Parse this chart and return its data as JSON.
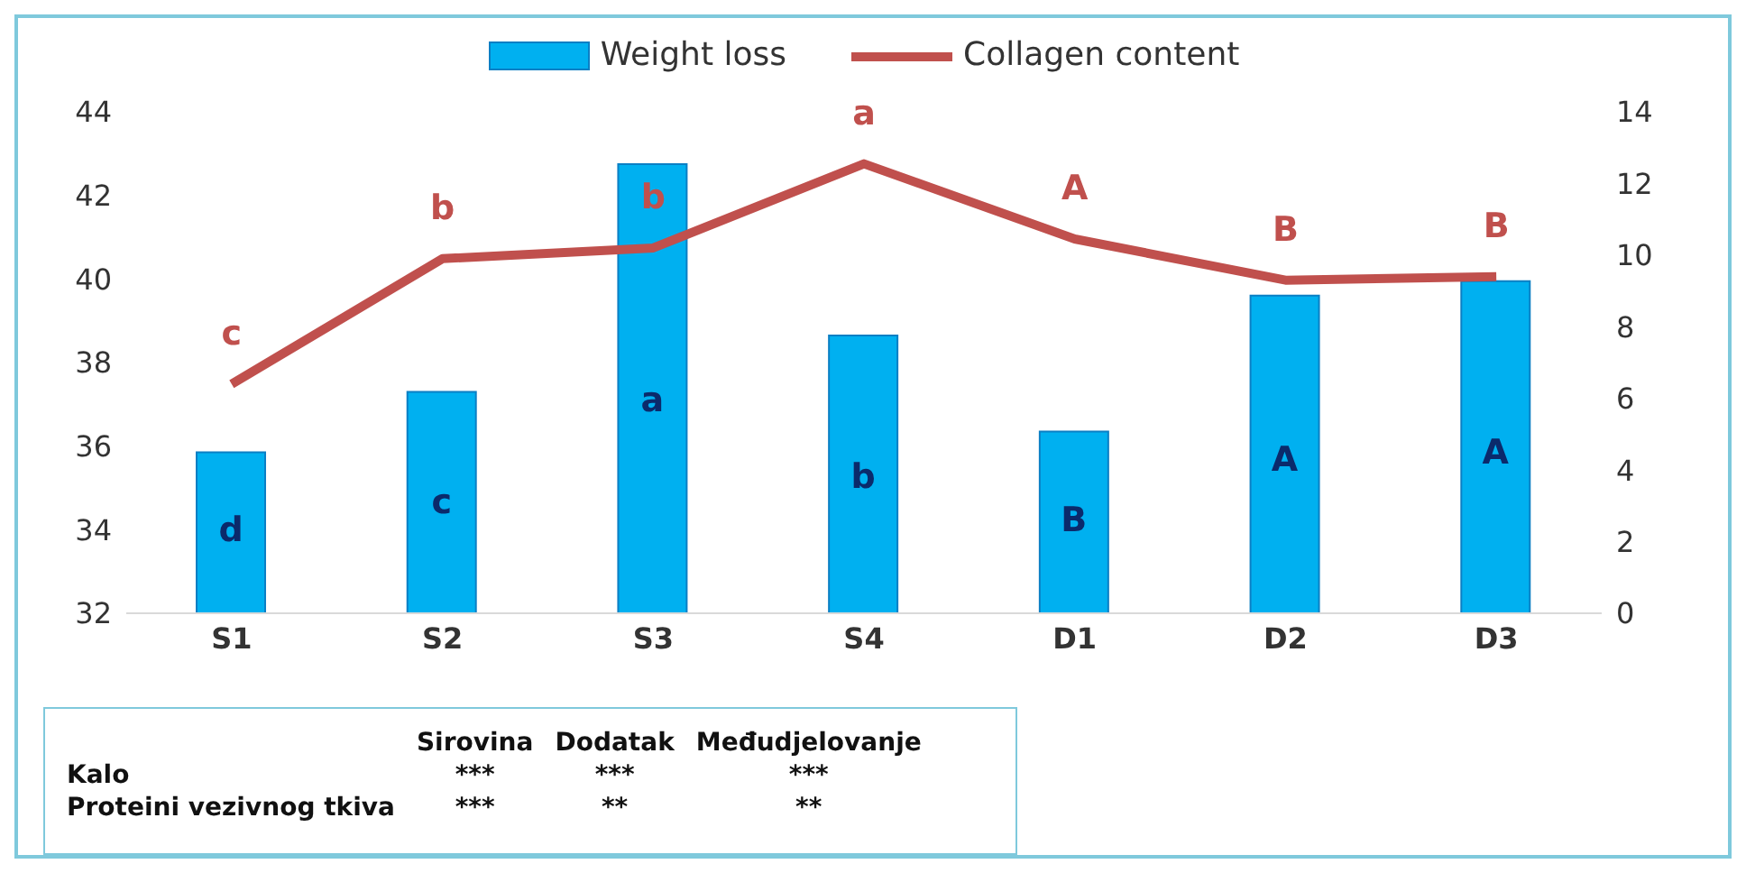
{
  "chart_data": {
    "type": "bar",
    "categories": [
      "S1",
      "S2",
      "S3",
      "S4",
      "D1",
      "D2",
      "D3"
    ],
    "series": [
      {
        "name": "Weight loss",
        "color": "#00b0f0",
        "values": [
          35.85,
          37.3,
          42.75,
          38.65,
          36.35,
          39.6,
          39.95
        ],
        "value_labels": [
          "d",
          "c",
          "a",
          "b",
          "B",
          "A",
          "A"
        ]
      },
      {
        "name": "Collagen content",
        "type": "line",
        "axis": "y2",
        "color": "#c0504d",
        "values": [
          6.4,
          9.9,
          10.2,
          12.55,
          10.45,
          9.3,
          9.4
        ],
        "value_labels": [
          "c",
          "b",
          "b",
          "a",
          "A",
          "B",
          "B"
        ]
      }
    ],
    "ylim": [
      32,
      44
    ],
    "yticks": [
      32,
      34,
      36,
      38,
      40,
      42,
      44
    ],
    "y2lim": [
      0,
      14
    ],
    "y2ticks": [
      0,
      2,
      4,
      6,
      8,
      10,
      12,
      14
    ],
    "legend": "top",
    "grid": false,
    "marker": "none",
    "annotations": [
      "Sirovina",
      "Dodatak",
      "Međudjelovanje",
      "Kalo",
      "***",
      "***",
      "***",
      "Proteini vezivnog tkiva",
      "***",
      "**",
      "**"
    ]
  }
}
